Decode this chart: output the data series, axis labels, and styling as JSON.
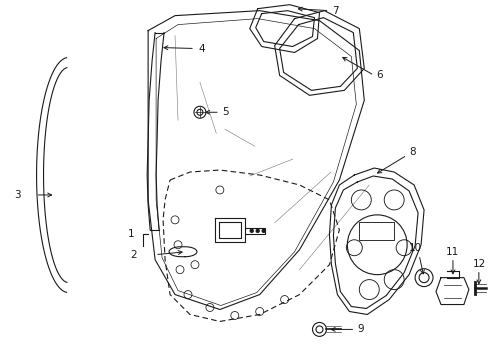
{
  "background_color": "#ffffff",
  "line_color": "#1a1a1a",
  "fig_width": 4.89,
  "fig_height": 3.6,
  "dpi": 100,
  "label_fs": 7.5
}
